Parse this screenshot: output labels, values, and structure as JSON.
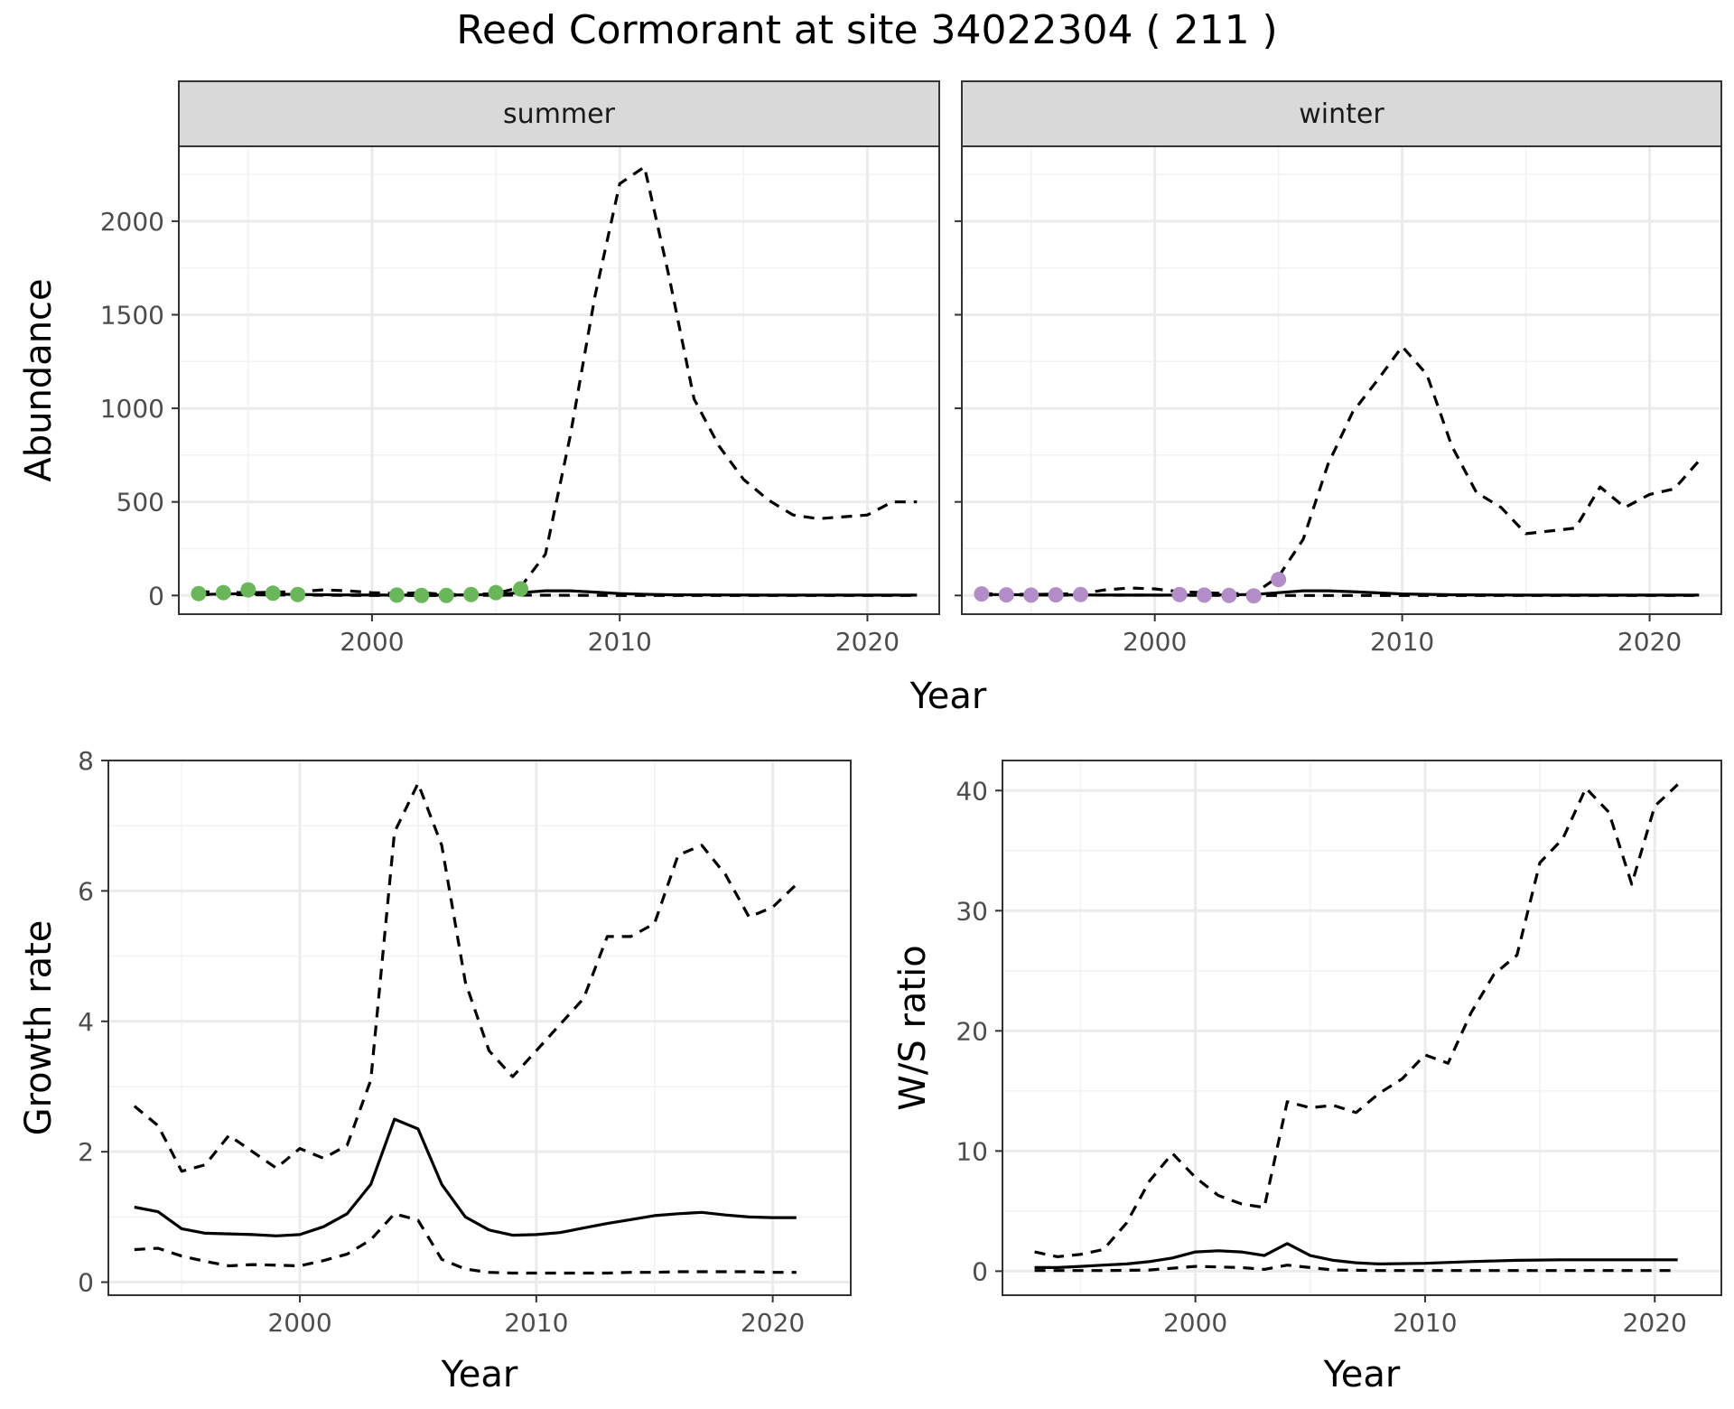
{
  "title": "Reed Cormorant at site 34022304 ( 211 )",
  "chart_data": [
    {
      "type": "line",
      "panel": "summer",
      "strip_label": "summer",
      "xlabel": "Year",
      "ylabel": "Abundance",
      "xlim": [
        1992.2,
        2022.9
      ],
      "ylim": [
        -100,
        2400
      ],
      "xticks": [
        2000,
        2010,
        2020
      ],
      "xticks_minor": [
        1995,
        2005,
        2015
      ],
      "yticks": [
        0,
        500,
        1000,
        1500,
        2000
      ],
      "yticks_minor": [
        250,
        750,
        1250,
        1750,
        2250
      ],
      "show_y_tick_labels": true,
      "point_color": "#6ab65a",
      "series": [
        {
          "style": "solid",
          "x": [
            1993,
            1995,
            1997,
            1999,
            2001,
            2003,
            2005,
            2006,
            2007,
            2008,
            2009,
            2010,
            2011,
            2012,
            2014,
            2016,
            2018,
            2020,
            2022
          ],
          "values": [
            5,
            10,
            5,
            3,
            2,
            2,
            5,
            15,
            25,
            25,
            18,
            10,
            6,
            4,
            3,
            2,
            2,
            2,
            2
          ]
        },
        {
          "style": "dashed",
          "x": [
            1993,
            1995,
            1997,
            1998,
            1999,
            2000,
            2001,
            2002,
            2003,
            2004,
            2005,
            2006,
            2007,
            2008,
            2009,
            2010,
            2011,
            2012,
            2013,
            2014,
            2015,
            2016,
            2017,
            2018,
            2020,
            2021,
            2022
          ],
          "values": [
            20,
            15,
            20,
            30,
            25,
            15,
            10,
            15,
            5,
            5,
            10,
            45,
            220,
            850,
            1600,
            2200,
            2290,
            1700,
            1050,
            800,
            620,
            510,
            430,
            410,
            430,
            500,
            500
          ]
        },
        {
          "style": "dashed",
          "x": [
            1993,
            1996,
            2000,
            2003,
            2006,
            2010,
            2014,
            2018,
            2022
          ],
          "values": [
            5,
            3,
            0,
            0,
            2,
            0,
            0,
            0,
            0
          ]
        }
      ],
      "points": {
        "x": [
          1993,
          1994,
          1995,
          1996,
          1997,
          2001,
          2002,
          2003,
          2004,
          2005,
          2006
        ],
        "values": [
          10,
          15,
          30,
          12,
          5,
          2,
          0,
          0,
          5,
          15,
          35
        ]
      }
    },
    {
      "type": "line",
      "panel": "winter",
      "strip_label": "winter",
      "xlabel": "Year",
      "ylabel": "",
      "xlim": [
        1992.2,
        2022.9
      ],
      "ylim": [
        -100,
        2400
      ],
      "xticks": [
        2000,
        2010,
        2020
      ],
      "xticks_minor": [
        1995,
        2005,
        2015
      ],
      "yticks": [
        0,
        500,
        1000,
        1500,
        2000
      ],
      "yticks_minor": [
        250,
        750,
        1250,
        1750,
        2250
      ],
      "show_y_tick_labels": false,
      "point_color": "#b28dc7",
      "series": [
        {
          "style": "solid",
          "x": [
            1993,
            1996,
            1999,
            2002,
            2004,
            2005,
            2006,
            2007,
            2008,
            2010,
            2012,
            2015,
            2018,
            2022
          ],
          "values": [
            5,
            3,
            2,
            2,
            5,
            15,
            25,
            25,
            20,
            8,
            4,
            2,
            2,
            2
          ]
        },
        {
          "style": "dashed",
          "x": [
            1993,
            1995,
            1997,
            1998,
            1999,
            2000,
            2001,
            2002,
            2003,
            2004,
            2005,
            2006,
            2007,
            2008,
            2009,
            2010,
            2011,
            2012,
            2013,
            2014,
            2015,
            2017,
            2018,
            2019,
            2020,
            2021,
            2022
          ],
          "values": [
            10,
            5,
            10,
            30,
            40,
            35,
            20,
            15,
            10,
            10,
            100,
            300,
            700,
            980,
            1150,
            1330,
            1180,
            800,
            550,
            470,
            330,
            360,
            580,
            470,
            540,
            570,
            720
          ]
        },
        {
          "style": "dashed",
          "x": [
            1993,
            1997,
            2001,
            2005,
            2010,
            2015,
            2020,
            2022
          ],
          "values": [
            3,
            2,
            1,
            0,
            0,
            0,
            0,
            0
          ]
        }
      ],
      "points": {
        "x": [
          1993,
          1994,
          1995,
          1996,
          1997,
          2001,
          2002,
          2003,
          2004,
          2005
        ],
        "values": [
          8,
          3,
          2,
          3,
          5,
          5,
          2,
          0,
          -2,
          85
        ]
      }
    },
    {
      "type": "line",
      "panel": "growth",
      "xlabel": "Year",
      "ylabel": "Growth rate",
      "xlim": [
        1991.9,
        2023.3
      ],
      "ylim": [
        -0.2,
        8.0
      ],
      "xticks": [
        2000,
        2010,
        2020
      ],
      "xticks_minor": [
        1995,
        2005,
        2015
      ],
      "yticks": [
        0,
        2,
        4,
        6,
        8
      ],
      "yticks_minor": [
        1,
        3,
        5,
        7
      ],
      "show_y_tick_labels": true,
      "series": [
        {
          "style": "solid",
          "x": [
            1993,
            1994,
            1995,
            1996,
            1997,
            1998,
            1999,
            2000,
            2001,
            2002,
            2003,
            2004,
            2005,
            2006,
            2007,
            2008,
            2009,
            2010,
            2011,
            2012,
            2013,
            2014,
            2015,
            2016,
            2017,
            2018,
            2019,
            2020,
            2021
          ],
          "values": [
            1.15,
            1.08,
            0.82,
            0.75,
            0.74,
            0.73,
            0.71,
            0.73,
            0.85,
            1.05,
            1.5,
            2.5,
            2.35,
            1.5,
            1.0,
            0.8,
            0.72,
            0.73,
            0.76,
            0.83,
            0.9,
            0.96,
            1.02,
            1.05,
            1.07,
            1.03,
            1.0,
            0.99,
            0.99
          ]
        },
        {
          "style": "dashed",
          "x": [
            1993,
            1994,
            1995,
            1996,
            1997,
            1998,
            1999,
            2000,
            2001,
            2002,
            2003,
            2004,
            2005,
            2006,
            2007,
            2008,
            2009,
            2010,
            2011,
            2012,
            2013,
            2014,
            2015,
            2016,
            2017,
            2018,
            2019,
            2020,
            2021
          ],
          "values": [
            2.7,
            2.4,
            1.7,
            1.8,
            2.25,
            2.0,
            1.75,
            2.05,
            1.9,
            2.1,
            3.1,
            6.9,
            7.65,
            6.7,
            4.6,
            3.55,
            3.15,
            3.55,
            3.95,
            4.35,
            5.3,
            5.3,
            5.5,
            6.55,
            6.7,
            6.25,
            5.6,
            5.75,
            6.1
          ]
        },
        {
          "style": "dashed",
          "x": [
            1993,
            1994,
            1995,
            1996,
            1997,
            1998,
            1999,
            2000,
            2001,
            2002,
            2003,
            2004,
            2005,
            2006,
            2007,
            2008,
            2009,
            2010,
            2011,
            2012,
            2013,
            2014,
            2015,
            2016,
            2017,
            2018,
            2019,
            2020,
            2021
          ],
          "values": [
            0.5,
            0.52,
            0.4,
            0.32,
            0.25,
            0.27,
            0.26,
            0.25,
            0.33,
            0.43,
            0.65,
            1.05,
            0.95,
            0.35,
            0.2,
            0.15,
            0.14,
            0.14,
            0.14,
            0.14,
            0.14,
            0.15,
            0.15,
            0.16,
            0.16,
            0.16,
            0.16,
            0.15,
            0.15
          ]
        }
      ]
    },
    {
      "type": "line",
      "panel": "ws_ratio",
      "xlabel": "Year",
      "ylabel": "W/S ratio",
      "xlim": [
        1991.6,
        2022.9
      ],
      "ylim": [
        -2,
        42.5
      ],
      "xticks": [
        2000,
        2010,
        2020
      ],
      "xticks_minor": [
        1995,
        2005,
        2015
      ],
      "yticks": [
        0,
        10,
        20,
        30,
        40
      ],
      "yticks_minor": [
        5,
        15,
        25,
        35
      ],
      "show_y_tick_labels": true,
      "series": [
        {
          "style": "solid",
          "x": [
            1993,
            1994,
            1995,
            1996,
            1997,
            1998,
            1999,
            2000,
            2001,
            2002,
            2003,
            2004,
            2005,
            2006,
            2007,
            2008,
            2010,
            2012,
            2014,
            2016,
            2018,
            2020,
            2021
          ],
          "values": [
            0.3,
            0.3,
            0.4,
            0.5,
            0.6,
            0.8,
            1.1,
            1.6,
            1.7,
            1.6,
            1.3,
            2.3,
            1.3,
            0.9,
            0.7,
            0.6,
            0.65,
            0.8,
            0.9,
            0.95,
            0.95,
            0.95,
            0.95
          ]
        },
        {
          "style": "dashed",
          "x": [
            1993,
            1994,
            1995,
            1996,
            1997,
            1998,
            1999,
            2000,
            2001,
            2002,
            2003,
            2004,
            2005,
            2006,
            2007,
            2008,
            2009,
            2010,
            2011,
            2012,
            2013,
            2014,
            2015,
            2016,
            2017,
            2018,
            2019,
            2020,
            2021
          ],
          "values": [
            1.6,
            1.2,
            1.4,
            1.8,
            4.0,
            7.5,
            9.8,
            7.8,
            6.3,
            5.6,
            5.3,
            14.1,
            13.6,
            13.8,
            13.2,
            14.8,
            16.0,
            18.0,
            17.3,
            21.5,
            24.7,
            26.3,
            34.0,
            36.0,
            40.2,
            38.2,
            32.2,
            38.7,
            40.5
          ]
        },
        {
          "style": "dashed",
          "x": [
            1993,
            1996,
            1998,
            2000,
            2002,
            2003,
            2004,
            2005,
            2006,
            2008,
            2010,
            2015,
            2021
          ],
          "values": [
            0.05,
            0.05,
            0.1,
            0.4,
            0.3,
            0.15,
            0.5,
            0.3,
            0.1,
            0.05,
            0.05,
            0.05,
            0.05
          ]
        }
      ]
    }
  ]
}
